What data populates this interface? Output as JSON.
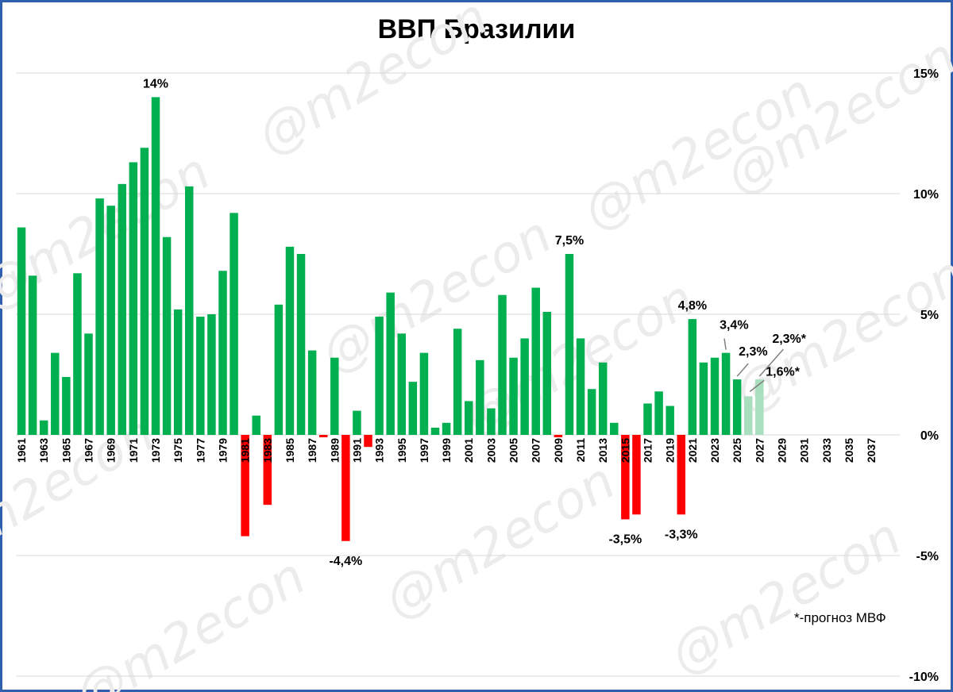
{
  "chart_data": {
    "type": "bar",
    "title": "ВВП Бразилии",
    "note": "*-прогноз МВФ",
    "watermark": "@m2econ",
    "ylim": [
      -10,
      15
    ],
    "yticks": [
      15,
      10,
      5,
      0,
      -5,
      -10
    ],
    "ytick_labels": [
      "15%",
      "10%",
      "5%",
      "0%",
      "-5%",
      "-10%"
    ],
    "grid": true,
    "xticks": [
      "1961",
      "1963",
      "1965",
      "1967",
      "1969",
      "1971",
      "1973",
      "1975",
      "1977",
      "1979",
      "1981",
      "1983",
      "1985",
      "1987",
      "1989",
      "1991",
      "1993",
      "1995",
      "1997",
      "1999",
      "2001",
      "2003",
      "2005",
      "2007",
      "2009",
      "2011",
      "2013",
      "2015",
      "2017",
      "2019",
      "2021",
      "2023",
      "2025",
      "2027",
      "2029",
      "2031",
      "2033",
      "2035",
      "2037"
    ],
    "categories": [
      "1961",
      "1962",
      "1963",
      "1964",
      "1965",
      "1966",
      "1967",
      "1968",
      "1969",
      "1970",
      "1971",
      "1972",
      "1973",
      "1974",
      "1975",
      "1976",
      "1977",
      "1978",
      "1979",
      "1980",
      "1981",
      "1982",
      "1983",
      "1984",
      "1985",
      "1986",
      "1987",
      "1988",
      "1989",
      "1990",
      "1991",
      "1992",
      "1993",
      "1994",
      "1995",
      "1996",
      "1997",
      "1998",
      "1999",
      "2000",
      "2001",
      "2002",
      "2003",
      "2004",
      "2005",
      "2006",
      "2007",
      "2008",
      "2009",
      "2010",
      "2011",
      "2012",
      "2013",
      "2014",
      "2015",
      "2016",
      "2017",
      "2018",
      "2019",
      "2020",
      "2021",
      "2022",
      "2023",
      "2024",
      "2025",
      "2026",
      "2027"
    ],
    "values": [
      8.6,
      6.6,
      0.6,
      3.4,
      2.4,
      6.7,
      4.2,
      9.8,
      9.5,
      10.4,
      11.3,
      11.9,
      14.0,
      8.2,
      5.2,
      10.3,
      4.9,
      5.0,
      6.8,
      9.2,
      -4.2,
      0.8,
      -2.9,
      5.4,
      7.8,
      7.5,
      3.5,
      -0.1,
      3.2,
      -4.4,
      1.0,
      -0.5,
      4.9,
      5.9,
      4.2,
      2.2,
      3.4,
      0.3,
      0.5,
      4.4,
      1.4,
      3.1,
      1.1,
      5.8,
      3.2,
      4.0,
      6.1,
      5.1,
      -0.1,
      7.5,
      4.0,
      1.9,
      3.0,
      0.5,
      -3.5,
      -3.3,
      1.3,
      1.8,
      1.2,
      -3.3,
      4.8,
      3.0,
      3.2,
      3.4,
      2.3,
      1.6,
      2.3
    ],
    "forecast_from": "2026",
    "colors": {
      "positive": "#00b050",
      "negative": "#ff0000",
      "forecast": "#a9dfbf",
      "grid": "#d9d9d9",
      "leader": "#808080"
    },
    "annotations": [
      {
        "category": "1973",
        "text": "14%",
        "side": "above"
      },
      {
        "category": "1990",
        "text": "-4,4%",
        "side": "below"
      },
      {
        "category": "2010",
        "text": "7,5%",
        "side": "above"
      },
      {
        "category": "2015",
        "text": "-3,5%",
        "side": "below"
      },
      {
        "category": "2020",
        "text": "-3,3%",
        "side": "below"
      },
      {
        "category": "2021",
        "text": "4,8%",
        "side": "above"
      },
      {
        "category": "2024",
        "text": "3,4%",
        "side": "leader"
      },
      {
        "category": "2025",
        "text": "2,3%",
        "side": "leader"
      },
      {
        "category": "2026",
        "text": "1,6%*",
        "side": "leader"
      },
      {
        "category": "2027",
        "text": "2,3%*",
        "side": "leader"
      }
    ]
  }
}
